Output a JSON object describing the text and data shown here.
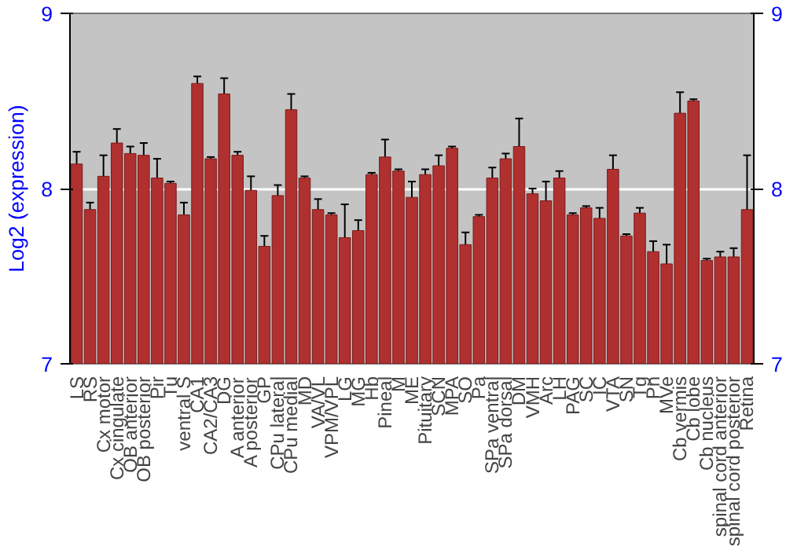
{
  "chart_data": {
    "type": "bar",
    "ylabel": "Log2 (expression)",
    "categories": [
      "LS",
      "RS",
      "Cx motor",
      "Cx cingulate",
      "OB anterior",
      "OB posterior",
      "Pir",
      "Tu",
      "ventral S",
      "CA1",
      "CA2/CA3",
      "DG",
      "A anterior",
      "A posterior",
      "GP",
      "CPu lateral",
      "CPu medial",
      "MD",
      "VA/VL",
      "VPM/VPL",
      "LG",
      "MG",
      "Hb",
      "Pineal",
      "M",
      "ME",
      "Pituitary",
      "SCN",
      "MPA",
      "SO",
      "Pa",
      "SPa ventral",
      "SPa dorsal",
      "DM",
      "VMH",
      "Arc",
      "LH",
      "PAG",
      "SC",
      "IC",
      "VTA",
      "SN",
      "Tg",
      "Pn",
      "MVe",
      "Cb vermis",
      "Cb lobe",
      "Cb nucleus",
      "spinal cord anterior",
      "spinal cord posterior",
      "Retina"
    ],
    "values": [
      8.14,
      7.88,
      8.07,
      8.26,
      8.2,
      8.19,
      8.06,
      8.03,
      7.85,
      8.6,
      8.17,
      8.54,
      8.19,
      7.99,
      7.67,
      7.96,
      8.45,
      8.06,
      7.88,
      7.85,
      7.72,
      7.76,
      8.08,
      8.18,
      8.1,
      7.95,
      8.08,
      8.13,
      8.23,
      7.68,
      7.84,
      8.06,
      8.17,
      8.24,
      7.97,
      7.93,
      8.06,
      7.85,
      7.89,
      7.83,
      8.11,
      7.73,
      7.86,
      7.64,
      7.57,
      8.43,
      8.5,
      7.59,
      7.61,
      7.61,
      7.88
    ],
    "errors": [
      0.07,
      0.04,
      0.12,
      0.08,
      0.04,
      0.07,
      0.11,
      0.01,
      0.07,
      0.04,
      0.01,
      0.09,
      0.02,
      0.08,
      0.06,
      0.06,
      0.09,
      0.01,
      0.06,
      0.01,
      0.19,
      0.06,
      0.01,
      0.1,
      0.01,
      0.09,
      0.03,
      0.06,
      0.01,
      0.07,
      0.01,
      0.06,
      0.03,
      0.16,
      0.03,
      0.11,
      0.04,
      0.01,
      0.01,
      0.06,
      0.08,
      0.01,
      0.03,
      0.06,
      0.11,
      0.12,
      0.01,
      0.01,
      0.03,
      0.05,
      0.31
    ],
    "color": "#b03030",
    "ylim": [
      7,
      9
    ],
    "yticks": [
      7,
      8,
      9
    ],
    "y2lim": [
      7,
      9
    ],
    "y2ticks": [
      7,
      8,
      9
    ],
    "grid": "y"
  }
}
